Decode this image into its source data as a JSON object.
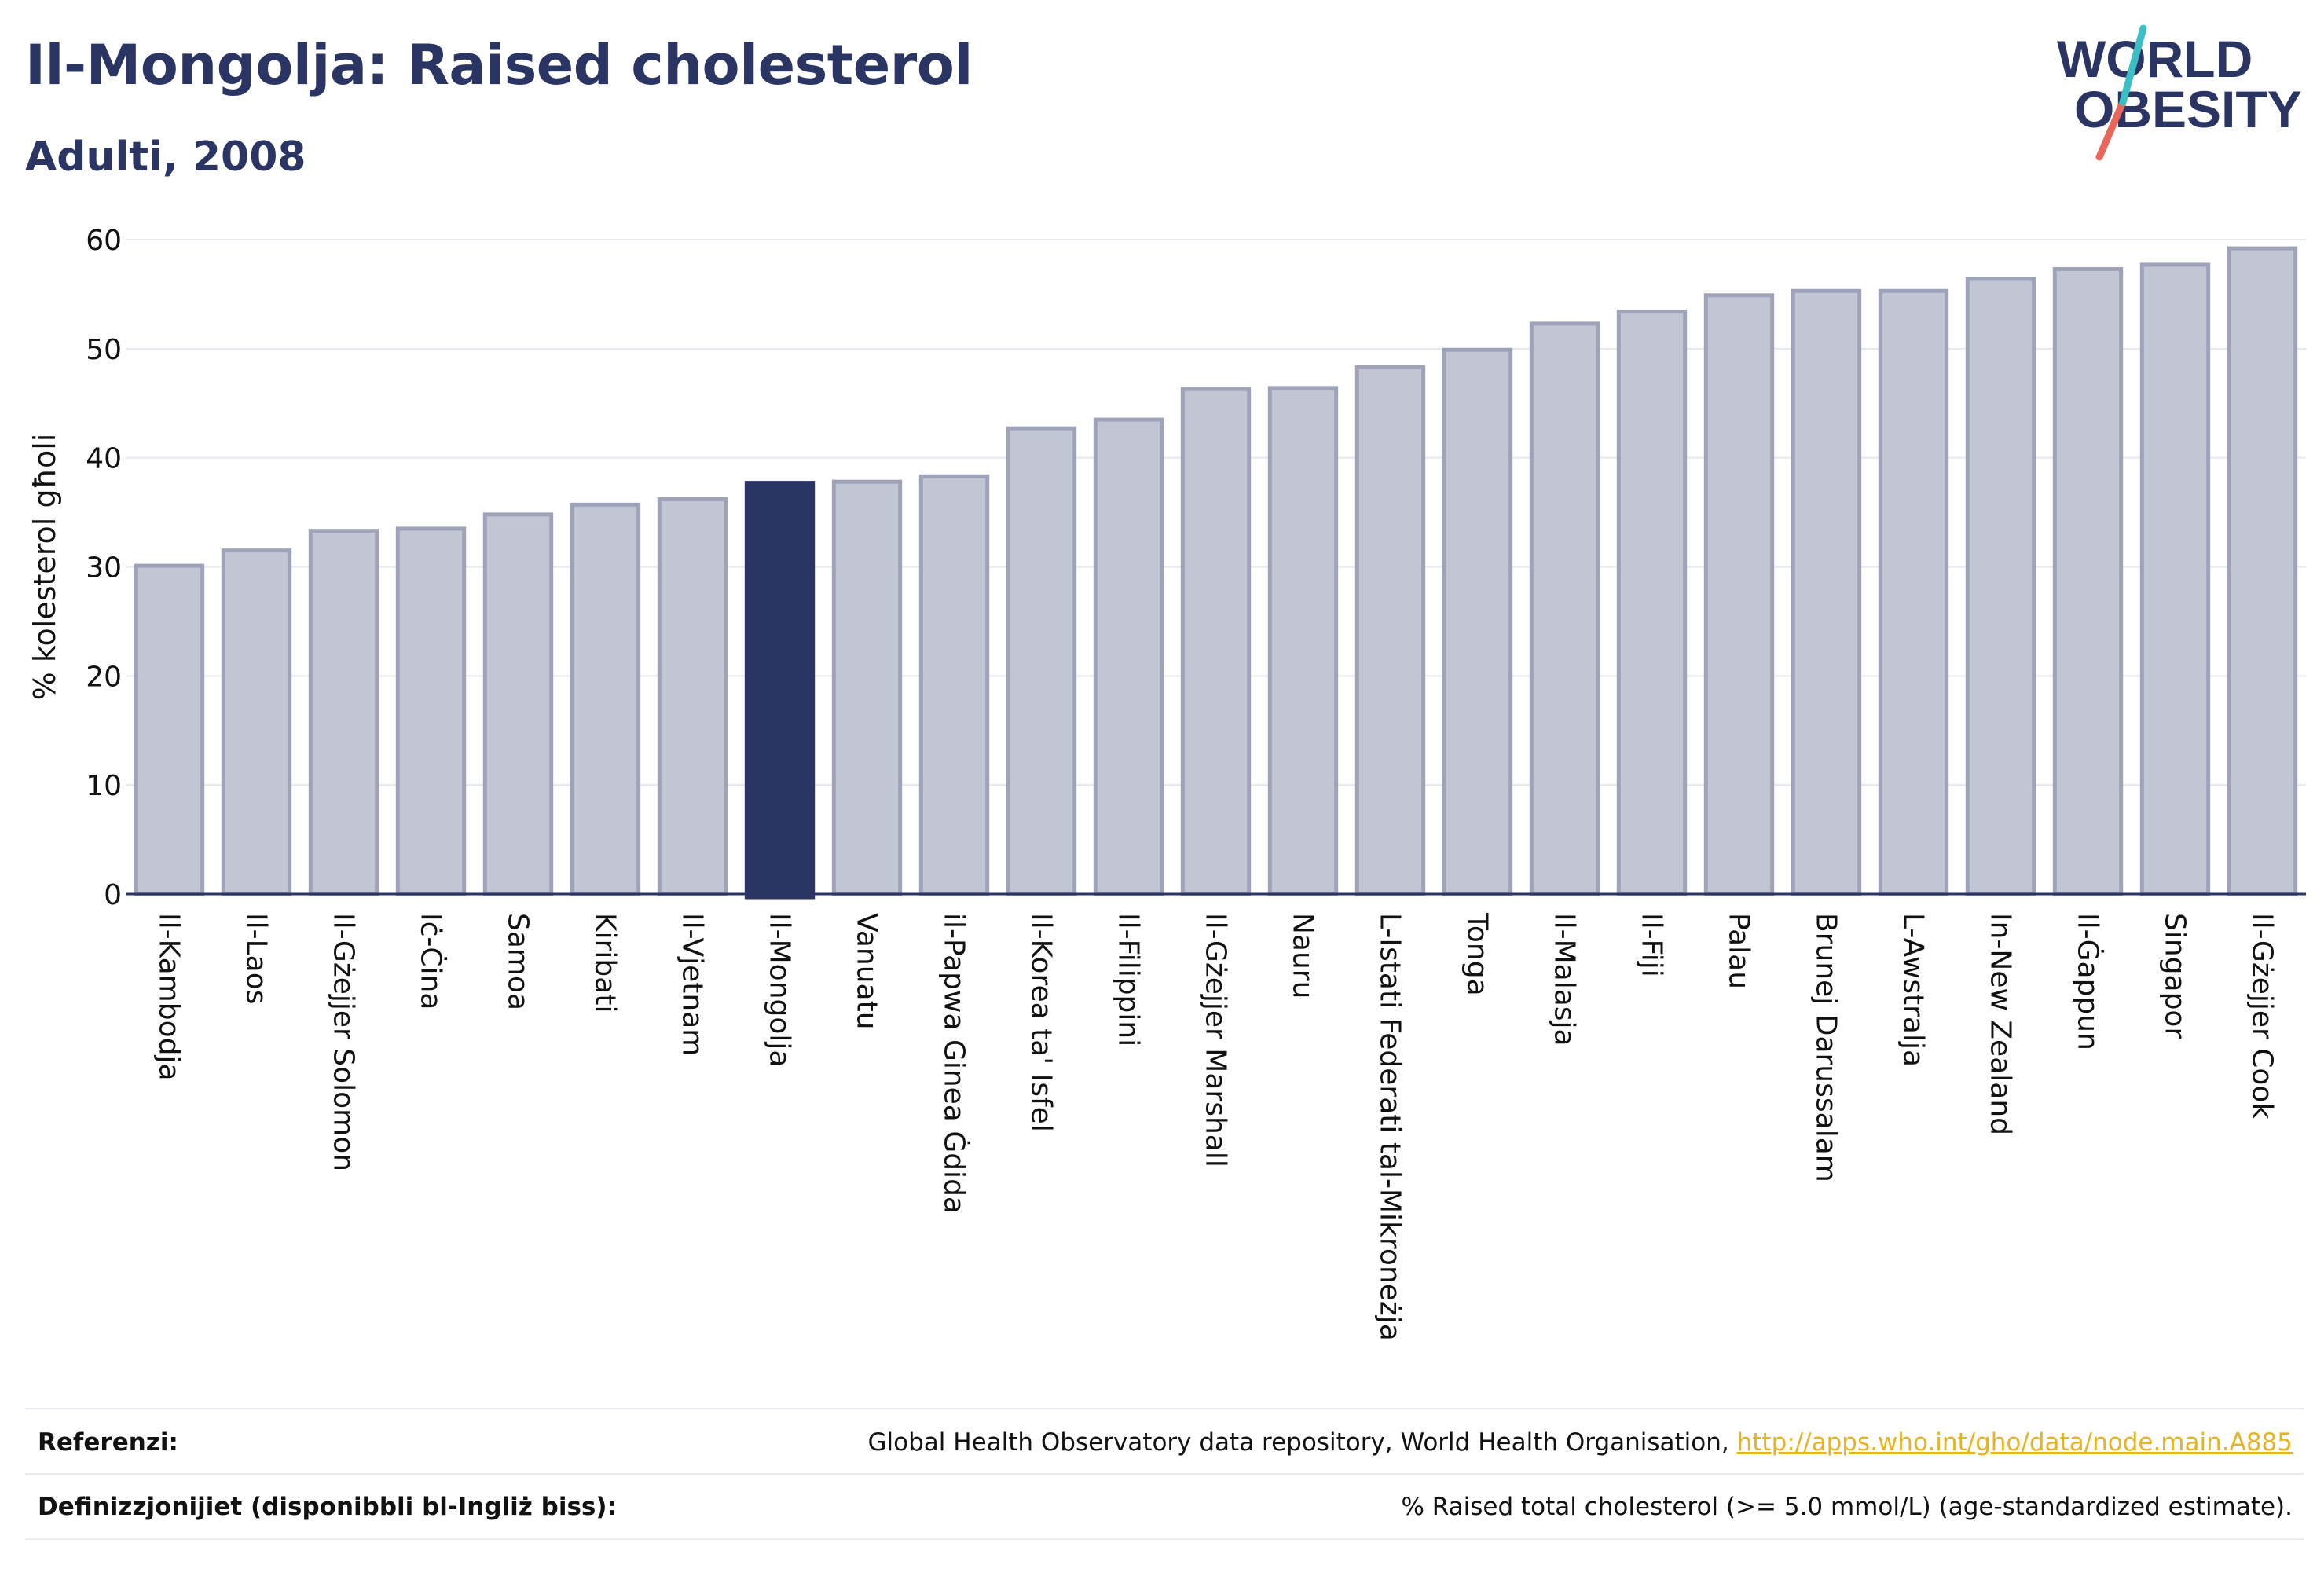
{
  "header": {
    "title": "Il-Mongolja: Raised cholesterol",
    "subtitle": "Adulti, 2008"
  },
  "logo": {
    "word1": "WORLD",
    "word2": "OBESITY",
    "colors": {
      "text": "#2a3563",
      "slash_teal": "#3bbfc4",
      "slash_red": "#e8675a"
    }
  },
  "colors": {
    "bar": "#c2c5d3",
    "bar_edge": "#9ea3ba",
    "highlight": "#2a3563",
    "grid": "#e6e8ee",
    "axis": "#2a3563"
  },
  "chart_data": {
    "type": "bar",
    "ylabel": "% kolesterol għoli",
    "ylim": [
      0,
      60
    ],
    "yticks": [
      0,
      10,
      20,
      30,
      40,
      50,
      60
    ],
    "grid": true,
    "highlight": "Il-Mongolja",
    "categories": [
      "Il-Kambodja",
      "Il-Laos",
      "Il-Gżejjer Solomon",
      "Iċ-Ċina",
      "Samoa",
      "Kiribati",
      "Il-Vjetnam",
      "Il-Mongolja",
      "Vanuatu",
      "il-Papwa Ginea Ġdida",
      "Il-Korea ta' Isfel",
      "Il-Filippini",
      "Il-Gżejjer Marshall",
      "Nauru",
      "L-Istati Federati tal-Mikroneżja",
      "Tonga",
      "Il-Malasja",
      "Il-Fiji",
      "Palau",
      "Brunej Darussalam",
      "L-Awstralja",
      "In-New Zealand",
      "Il-Ġappun",
      "Singapor",
      "Il-Gżejjer Cook"
    ],
    "values": [
      30.1,
      31.5,
      33.3,
      33.5,
      34.8,
      35.7,
      36.2,
      37.7,
      37.8,
      38.3,
      42.7,
      43.5,
      46.3,
      46.4,
      48.3,
      49.9,
      52.3,
      53.4,
      54.9,
      55.3,
      55.3,
      56.4,
      57.3,
      57.7,
      59.2
    ]
  },
  "footer": {
    "references_label": "Referenzi:",
    "references_text": "Global Health Observatory data repository, World Health Organisation, ",
    "references_link": "http://apps.who.int/gho/data/node.main.A885",
    "definitions_label": "Definizzjonijiet (disponibbli bl-Ingliż biss):",
    "definitions_text": "% Raised total cholesterol (>= 5.0 mmol/L) (age-standardized estimate)."
  }
}
